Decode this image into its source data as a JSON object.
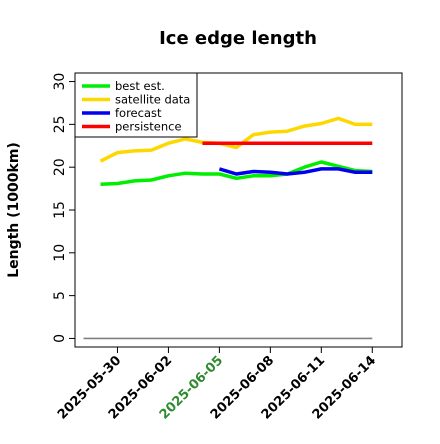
{
  "chart_data": {
    "type": "line",
    "title": "Ice edge length",
    "xlabel": "",
    "ylabel": "Length (1000km)",
    "ylim": [
      -1,
      31
    ],
    "y_ticks": [
      0,
      5,
      10,
      15,
      20,
      25,
      30
    ],
    "x_ticks": [
      {
        "label": "2025-05-30",
        "date": "2025-05-30",
        "color": "#000000"
      },
      {
        "label": "2025-06-02",
        "date": "2025-06-02",
        "color": "#000000"
      },
      {
        "label": "2025-06-05",
        "date": "2025-06-05",
        "color": "#2e8b2e"
      },
      {
        "label": "2025-06-08",
        "date": "2025-06-08",
        "color": "#000000"
      },
      {
        "label": "2025-06-11",
        "date": "2025-06-11",
        "color": "#000000"
      },
      {
        "label": "2025-06-14",
        "date": "2025-06-14",
        "color": "#000000"
      }
    ],
    "xlim": [
      "2025-05-27T12:00",
      "2025-06-15T18:00"
    ],
    "grid": false,
    "legend_position": "top-left",
    "baseline": {
      "y": 0,
      "x_start": "2025-05-28",
      "x_end": "2025-06-14",
      "color": "#808080"
    },
    "series": [
      {
        "name": "best est.",
        "color": "#00ee00",
        "points": [
          [
            "2025-05-29",
            18.0
          ],
          [
            "2025-05-30",
            18.1
          ],
          [
            "2025-05-31",
            18.4
          ],
          [
            "2025-06-01",
            18.5
          ],
          [
            "2025-06-02",
            19.0
          ],
          [
            "2025-06-03",
            19.3
          ],
          [
            "2025-06-04",
            19.2
          ],
          [
            "2025-06-05",
            19.2
          ],
          [
            "2025-06-06",
            18.7
          ],
          [
            "2025-06-07",
            19.0
          ],
          [
            "2025-06-08",
            19.0
          ],
          [
            "2025-06-09",
            19.2
          ],
          [
            "2025-06-10",
            20.0
          ],
          [
            "2025-06-11",
            20.6
          ],
          [
            "2025-06-12",
            20.1
          ],
          [
            "2025-06-13",
            19.6
          ],
          [
            "2025-06-14",
            19.5
          ]
        ]
      },
      {
        "name": "satellite data",
        "color": "#ffd700",
        "points": [
          [
            "2025-05-29",
            20.7
          ],
          [
            "2025-05-30",
            21.7
          ],
          [
            "2025-05-31",
            21.9
          ],
          [
            "2025-06-01",
            22.0
          ],
          [
            "2025-06-02",
            22.8
          ],
          [
            "2025-06-03",
            23.3
          ],
          [
            "2025-06-04",
            22.9
          ],
          [
            "2025-06-05",
            22.8
          ],
          [
            "2025-06-06",
            22.3
          ],
          [
            "2025-06-07",
            23.8
          ],
          [
            "2025-06-08",
            24.1
          ],
          [
            "2025-06-09",
            24.2
          ],
          [
            "2025-06-10",
            24.8
          ],
          [
            "2025-06-11",
            25.1
          ],
          [
            "2025-06-12",
            25.7
          ],
          [
            "2025-06-13",
            25.0
          ],
          [
            "2025-06-14",
            25.0
          ]
        ]
      },
      {
        "name": "forecast",
        "color": "#0000ee",
        "points": [
          [
            "2025-06-05",
            19.8
          ],
          [
            "2025-06-06",
            19.2
          ],
          [
            "2025-06-07",
            19.5
          ],
          [
            "2025-06-08",
            19.4
          ],
          [
            "2025-06-09",
            19.2
          ],
          [
            "2025-06-10",
            19.4
          ],
          [
            "2025-06-11",
            19.8
          ],
          [
            "2025-06-12",
            19.8
          ],
          [
            "2025-06-13",
            19.4
          ],
          [
            "2025-06-14",
            19.4
          ]
        ]
      },
      {
        "name": "persistence",
        "color": "#ff0000",
        "points": [
          [
            "2025-06-04",
            22.8
          ],
          [
            "2025-06-14",
            22.8
          ]
        ]
      }
    ]
  }
}
